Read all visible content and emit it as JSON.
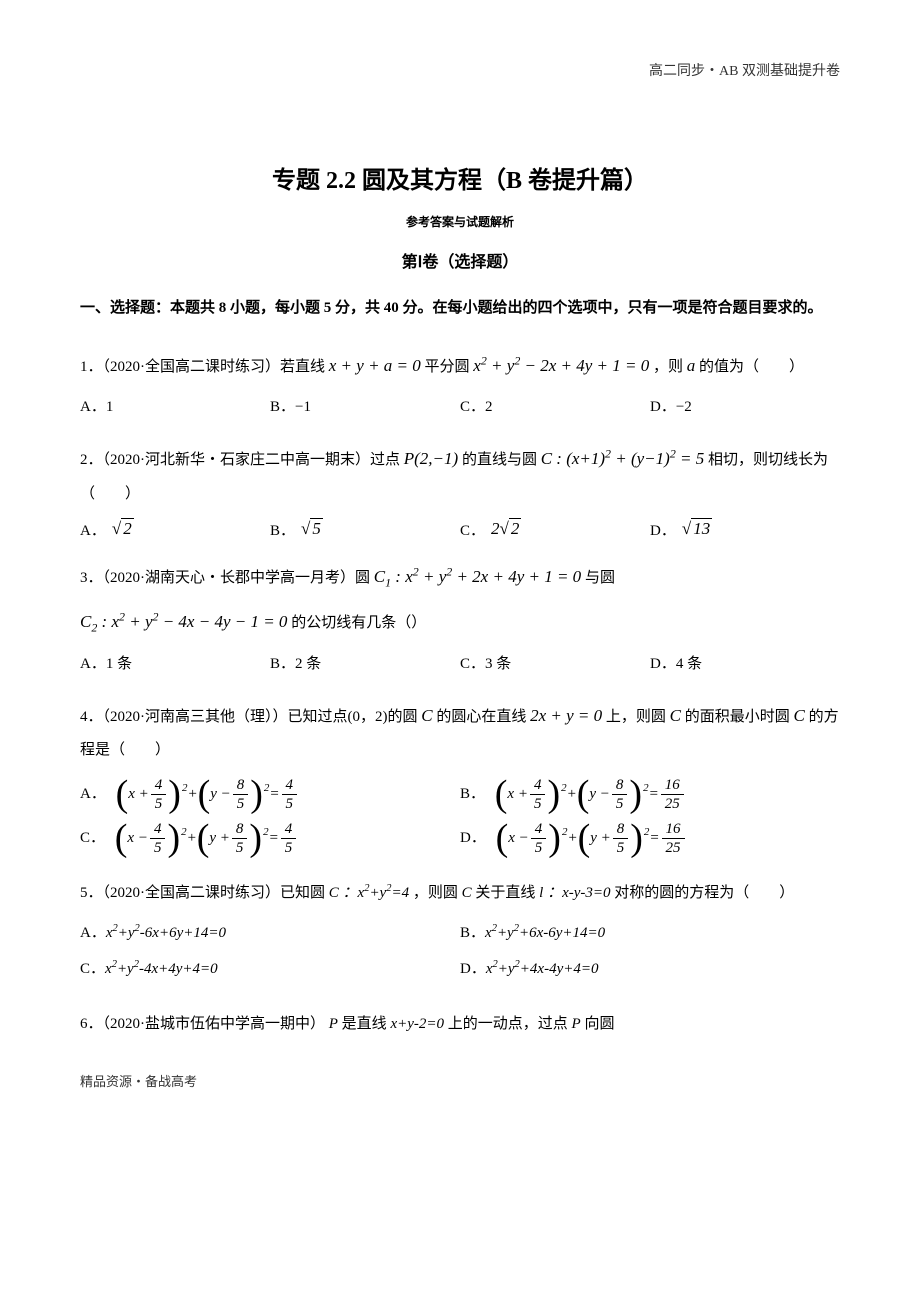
{
  "header_right": "高二同步・AB 双测基础提升卷",
  "title": "专题 2.2 圆及其方程（B 卷提升篇）",
  "subtitle": "参考答案与试题解析",
  "section_title": "第Ⅰ卷（选择题）",
  "instructions": "一、选择题：本题共 8 小题，每小题 5 分，共 40 分。在每小题给出的四个选项中，只有一项是符合题目要求的。",
  "q1": {
    "text_pre": "1．（2020·全国高二课时练习）若直线 ",
    "eq1": "x + y + a = 0",
    "text_mid": " 平分圆 ",
    "eq2_html": "x<span class='sup'>2</span> + y<span class='sup'>2</span> − 2x + 4y + 1 = 0",
    "text_post": "，则 ",
    "var": "a",
    "text_end": " 的值为（　　）",
    "choices": {
      "A": "A．1",
      "B": "B．−1",
      "C": "C．2",
      "D": "D．−2"
    }
  },
  "q2": {
    "text_pre": "2．（2020·河北新华・石家庄二中高一期末）过点 ",
    "pt": "P(2,−1)",
    "text_mid": " 的直线与圆 ",
    "eq_html": "C : (x+1)<span class='sup'>2</span> + (y−1)<span class='sup'>2</span> = 5",
    "text_post": " 相切，则切线长为（　　）",
    "choices": {
      "A": "A．",
      "Av": "2",
      "B": "B．",
      "Bv": "5",
      "C": "C．",
      "Cpre": "2",
      "Cv": "2",
      "D": "D．",
      "Dv": "13"
    }
  },
  "q3": {
    "text_pre": "3．（2020·湖南天心・长郡中学高一月考）圆 ",
    "eq1_html": "C<span class='sub'>1</span> : x<span class='sup'>2</span> + y<span class='sup'>2</span> + 2x + 4y + 1 = 0",
    "text_mid": " 与圆",
    "eq2_html": "C<span class='sub'>2</span> : x<span class='sup'>2</span> + y<span class='sup'>2</span> − 4x − 4y − 1 = 0",
    "text_post": " 的公切线有几条（）",
    "choices": {
      "A": "A．1 条",
      "B": "B．2 条",
      "C": "C．3 条",
      "D": "D．4 条"
    }
  },
  "q4": {
    "text_pre": "4．（2020·河南高三其他（理））已知过点(0，2)的圆 ",
    "Cvar": "C",
    "text_mid1": " 的圆心在直线 ",
    "line_eq": "2x + y = 0",
    "text_mid2": " 上，则圆 ",
    "text_mid3": " 的面积最小时圆 ",
    "text_post": " 的方程是（　　）",
    "A_label": "A．",
    "B_label": "B．",
    "C_label": "C．",
    "D_label": "D．",
    "frac45_num": "4",
    "frac45_den": "5",
    "frac85_num": "8",
    "frac85_den": "5",
    "rhs_45_num": "4",
    "rhs_45_den": "5",
    "rhs_1625_num": "16",
    "rhs_1625_den": "25"
  },
  "q5": {
    "text_pre": "5．（2020·全国高二课时练习）已知圆 ",
    "C_label": "C",
    "eq1_html": "：x<span class='sup'>2</span>+y<span class='sup'>2</span>=4",
    "text_mid": "，则圆 ",
    "text_mid2": " 关于直线 ",
    "l_label": "l",
    "line_eq_html": "：x-y-3=0",
    "text_post": " 对称的圆的方程为（　　）",
    "choices": {
      "A": "A．",
      "A_eq": "x<span class='sup'>2</span>+y<span class='sup'>2</span>-6x+6y+14=0",
      "B": "B．",
      "B_eq": "x<span class='sup'>2</span>+y<span class='sup'>2</span>+6x-6y+14=0",
      "C": "C．",
      "C_eq": "x<span class='sup'>2</span>+y<span class='sup'>2</span>-4x+4y+4=0",
      "D": "D．",
      "D_eq": "x<span class='sup'>2</span>+y<span class='sup'>2</span>+4x-4y+4=0"
    }
  },
  "q6": {
    "text_pre": "6．（2020·盐城市伍佑中学高一期中）",
    "Pvar": "P",
    "text_mid": " 是直线 ",
    "line_eq_html": "x+y-2=0",
    "text_mid2": " 上的一动点，过点 ",
    "text_post": " 向圆"
  },
  "footer": "精品资源・备战高考"
}
